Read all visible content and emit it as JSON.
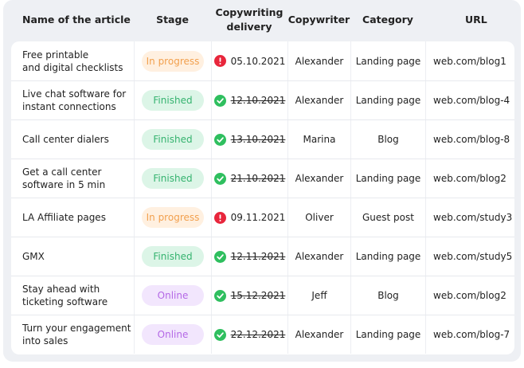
{
  "table": {
    "headers": [
      "Name of the article",
      "Stage",
      "Copywriting delivery",
      "Copywriter",
      "Category",
      "URL"
    ],
    "rows": [
      [
        "Free printable\nand digital checklists",
        "In progress",
        "05.10.2021",
        "Alexander",
        "Landing page",
        "web.com/blog1"
      ],
      [
        "Live chat software for\ninstant connections",
        "Finished",
        "12.10.2021",
        "Alexander",
        "Landing page",
        "web.com/blog-4"
      ],
      [
        "Call center dialers",
        "Finished",
        "13.10.2021",
        "Marina",
        "Blog",
        "web.com/blog-8"
      ],
      [
        "Get a call center\nsoftware in 5 min",
        "Finished",
        "21.10.2021",
        "Alexander",
        "Landing page",
        "web.com/blog2"
      ],
      [
        "LA Affiliate pages",
        "In progress",
        "09.11.2021",
        "Oliver",
        "Guest post",
        "web.com/study3"
      ],
      [
        "GMX",
        "Finished",
        "12.11.2021",
        "Alexander",
        "Landing page",
        "web.com/study5"
      ],
      [
        "Stay ahead with\nticketing software",
        "Online",
        "15.12.2021",
        "Jeff",
        "Blog",
        "web.com/blog2"
      ],
      [
        "Turn your engagement\ninto sales",
        "Online",
        "22.12.2021",
        "Alexander",
        "Landing page",
        "web.com/blog-7"
      ]
    ]
  }
}
